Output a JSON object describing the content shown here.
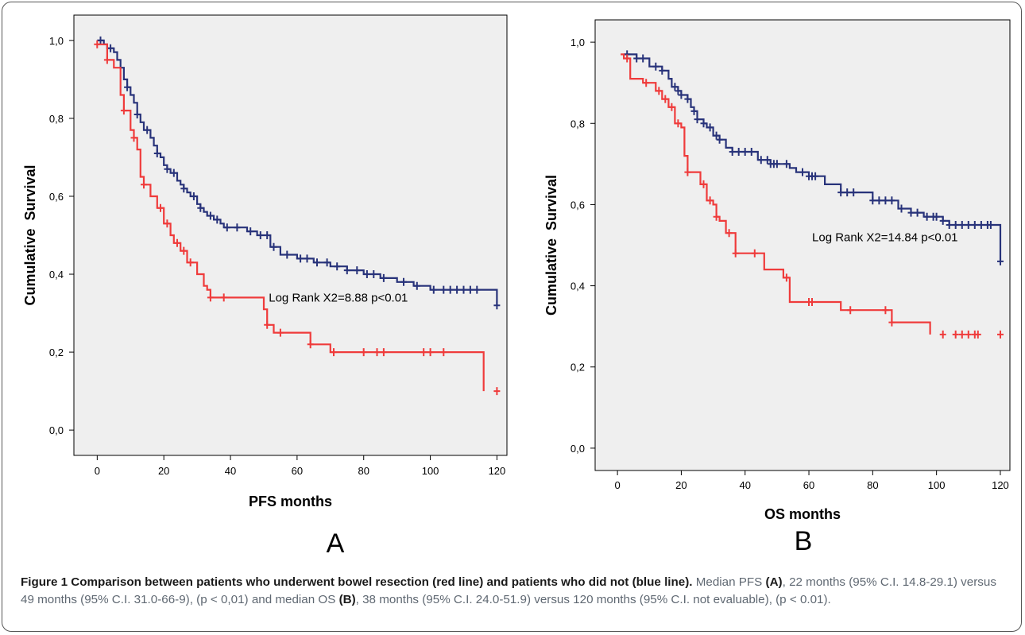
{
  "caption": {
    "title": "Figure 1 Comparison between patients who underwent bowel resection (red line) and patients who did not (blue line).",
    "text_1": " Median PFS ",
    "label_a": "(A)",
    "text_2": ", 22 months (95% C.I. 14.8-29.1) versus 49 months (95% C.I. 31.0-66-9), (p < 0,01) and median OS ",
    "label_b": "(B)",
    "text_3": ", 38 months (95% C.I. 24.0-51.9) versus 120 months (95% C.I. not evaluable), (p < 0.01)."
  },
  "chart_data": [
    {
      "type": "line",
      "step": true,
      "panel_label": "A",
      "xlabel": "PFS months",
      "ylabel": "Cumulative  Survival",
      "xlim": [
        -7,
        123
      ],
      "ylim": [
        -0.065,
        1.065
      ],
      "xticks": [
        0,
        20,
        40,
        60,
        80,
        100,
        120
      ],
      "xtick_labels": [
        "0",
        "20",
        "40",
        "60",
        "80",
        "100",
        "120"
      ],
      "yticks": [
        0,
        0.2,
        0.4,
        0.6,
        0.8,
        1.0
      ],
      "ytick_labels": [
        "0,0",
        "0,2",
        "0,4",
        "0,6",
        "0,8",
        "1,0"
      ],
      "annotation": {
        "text": "Log Rank X2=8.88 p<0.01",
        "x": 51.5,
        "y": 0.33
      },
      "grid": false,
      "background": "#efefef",
      "series": [
        {
          "color": "#28337a",
          "x": [
            0,
            2,
            3,
            5,
            6,
            7,
            8,
            9,
            10,
            11,
            12,
            13,
            14,
            16,
            17,
            18,
            19,
            20,
            21,
            22,
            24,
            25,
            26,
            27,
            28,
            30,
            31,
            32,
            33,
            35,
            37,
            38,
            40,
            42,
            45,
            48,
            52,
            55,
            60,
            65,
            70,
            75,
            80,
            85,
            90,
            95,
            100,
            120
          ],
          "y": [
            1.0,
            0.99,
            0.98,
            0.97,
            0.95,
            0.93,
            0.9,
            0.88,
            0.86,
            0.84,
            0.81,
            0.79,
            0.77,
            0.75,
            0.73,
            0.71,
            0.7,
            0.68,
            0.67,
            0.66,
            0.64,
            0.63,
            0.62,
            0.61,
            0.6,
            0.58,
            0.57,
            0.56,
            0.55,
            0.54,
            0.53,
            0.52,
            0.52,
            0.52,
            0.51,
            0.5,
            0.47,
            0.45,
            0.44,
            0.43,
            0.42,
            0.41,
            0.4,
            0.39,
            0.38,
            0.37,
            0.36,
            0.32
          ],
          "censor_x": [
            1,
            4,
            9,
            12,
            15,
            18,
            21,
            23,
            26,
            29,
            31,
            34,
            36,
            39,
            42,
            46,
            49,
            51,
            53,
            57,
            61,
            63,
            66,
            69,
            72,
            75,
            78,
            81,
            83,
            86,
            92,
            96,
            101,
            104,
            106,
            108,
            110,
            112,
            114,
            120
          ]
        },
        {
          "color": "#ef3b3b",
          "x": [
            0,
            3,
            5,
            7,
            8,
            10,
            11,
            12,
            13,
            14,
            16,
            18,
            20,
            22,
            23,
            25,
            27,
            30,
            32,
            33,
            34,
            50,
            51,
            53,
            58,
            64,
            70,
            115,
            116
          ],
          "y": [
            0.99,
            0.95,
            0.93,
            0.86,
            0.82,
            0.77,
            0.75,
            0.72,
            0.65,
            0.63,
            0.6,
            0.57,
            0.53,
            0.5,
            0.48,
            0.46,
            0.43,
            0.4,
            0.37,
            0.36,
            0.34,
            0.31,
            0.27,
            0.25,
            0.25,
            0.22,
            0.2,
            0.2,
            0.1
          ],
          "censor_x": [
            0,
            3,
            8,
            11,
            14,
            19,
            21,
            24,
            26,
            28,
            34,
            38,
            51,
            55,
            64,
            71,
            80,
            84,
            86,
            98,
            100,
            104,
            120
          ]
        }
      ]
    },
    {
      "type": "line",
      "step": true,
      "panel_label": "B",
      "xlabel": "OS months",
      "ylabel": "Cumulative  Survival",
      "xlim": [
        -7,
        123
      ],
      "ylim": [
        -0.055,
        1.055
      ],
      "xticks": [
        0,
        20,
        40,
        60,
        80,
        100,
        120
      ],
      "xtick_labels": [
        "0",
        "20",
        "40",
        "60",
        "80",
        "100",
        "120"
      ],
      "yticks": [
        0,
        0.2,
        0.4,
        0.6,
        0.8,
        1.0
      ],
      "ytick_labels": [
        "0,0",
        "0,2",
        "0,4",
        "0,6",
        "0,8",
        "1,0"
      ],
      "annotation": {
        "text": "Log Rank X2=14.84 p<0.01",
        "x": 61,
        "y": 0.51
      },
      "grid": false,
      "background": "#efefef",
      "series": [
        {
          "color": "#28337a",
          "x": [
            2,
            6,
            10,
            14,
            16,
            17,
            19,
            20,
            22,
            23,
            24,
            25,
            27,
            28,
            30,
            32,
            34,
            36,
            42,
            44,
            48,
            52,
            54,
            56,
            60,
            65,
            70,
            74,
            80,
            88,
            92,
            96,
            98,
            100,
            102,
            104,
            120
          ],
          "y": [
            0.97,
            0.96,
            0.94,
            0.93,
            0.91,
            0.89,
            0.88,
            0.87,
            0.86,
            0.84,
            0.83,
            0.81,
            0.8,
            0.79,
            0.77,
            0.76,
            0.74,
            0.73,
            0.73,
            0.71,
            0.7,
            0.7,
            0.69,
            0.68,
            0.67,
            0.65,
            0.63,
            0.63,
            0.61,
            0.59,
            0.58,
            0.57,
            0.57,
            0.57,
            0.56,
            0.55,
            0.46
          ],
          "censor_x": [
            3,
            6,
            8,
            12,
            14,
            18,
            19,
            20,
            22,
            24,
            25,
            27,
            29,
            31,
            32,
            36,
            38,
            40,
            42,
            45,
            47,
            48,
            49,
            50,
            53,
            58,
            60,
            61,
            62,
            70,
            72,
            74,
            80,
            82,
            84,
            86,
            89,
            92,
            94,
            97,
            99,
            100,
            102,
            104,
            106,
            108,
            110,
            112,
            114,
            116,
            117,
            120
          ]
        },
        {
          "color": "#ef3b3b",
          "x": [
            1,
            2,
            4,
            8,
            12,
            14,
            16,
            18,
            20,
            21,
            22,
            24,
            26,
            28,
            30,
            31,
            32,
            34,
            37,
            42,
            46,
            52,
            54,
            56,
            60,
            70,
            82,
            86,
            98
          ],
          "y": [
            0.97,
            0.96,
            0.91,
            0.9,
            0.88,
            0.86,
            0.84,
            0.8,
            0.79,
            0.72,
            0.68,
            0.68,
            0.65,
            0.61,
            0.6,
            0.57,
            0.56,
            0.53,
            0.48,
            0.48,
            0.44,
            0.42,
            0.36,
            0.36,
            0.36,
            0.34,
            0.34,
            0.31,
            0.28
          ],
          "censor_x": [
            3,
            9,
            13,
            15,
            17,
            19,
            22,
            27,
            29,
            31,
            35,
            37,
            43,
            53,
            60,
            61,
            73,
            84,
            86,
            102,
            106,
            108,
            110,
            112,
            113,
            120
          ]
        }
      ]
    }
  ]
}
